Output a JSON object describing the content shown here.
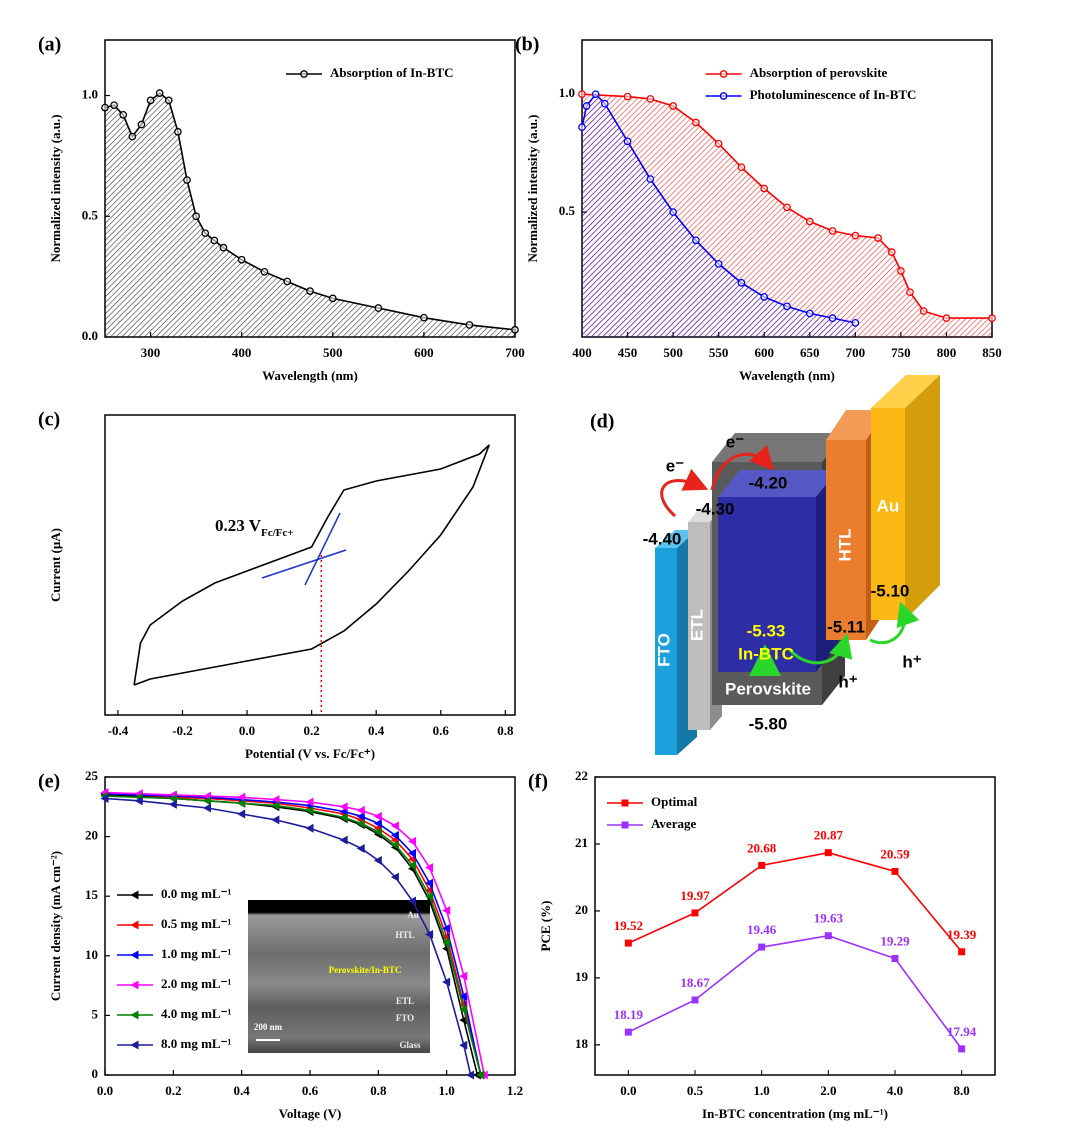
{
  "chart_data": [
    {
      "type": "line",
      "label": "(a)",
      "xlabel": "Wavelength (nm)",
      "ylabel": "Normalized intensity (a.u.)",
      "xlim": [
        250,
        700
      ],
      "ylim": [
        0,
        1.23
      ],
      "xticks": [
        300,
        400,
        500,
        600,
        700
      ],
      "yticks": [
        {
          "value": 0,
          "label": "0.0"
        },
        0.5,
        {
          "value": 1,
          "label": "1.0"
        }
      ],
      "legend": "top-right",
      "fill": "hatch",
      "marker": "open-circle",
      "series": [
        {
          "name": "Absorption of In-BTC",
          "color": "#000000",
          "x": [
            250,
            260,
            270,
            280,
            290,
            300,
            310,
            320,
            330,
            340,
            350,
            360,
            370,
            380,
            400,
            425,
            450,
            475,
            500,
            550,
            600,
            650,
            700
          ],
          "values": [
            0.95,
            0.96,
            0.92,
            0.83,
            0.88,
            0.98,
            1.01,
            0.98,
            0.85,
            0.65,
            0.5,
            0.43,
            0.4,
            0.37,
            0.32,
            0.27,
            0.23,
            0.19,
            0.16,
            0.12,
            0.08,
            0.05,
            0.03
          ]
        }
      ]
    },
    {
      "type": "line",
      "label": "(b)",
      "xlabel": "Wavelength (nm)",
      "ylabel": "Normalized intensity (a.u.)",
      "xlim": [
        400,
        850
      ],
      "ylim": [
        -0.03,
        1.23
      ],
      "xticks": [
        400,
        450,
        500,
        550,
        600,
        650,
        700,
        750,
        800,
        850
      ],
      "yticks": [
        0.5,
        {
          "value": 1,
          "label": "1.0"
        }
      ],
      "legend": "top-right",
      "fill": "hatch",
      "marker": "open-circle",
      "series": [
        {
          "name": "Absorption of perovskite",
          "color": "#ff0000",
          "x": [
            400,
            450,
            475,
            500,
            525,
            550,
            575,
            600,
            625,
            650,
            675,
            700,
            725,
            740,
            750,
            760,
            775,
            800,
            850
          ],
          "values": [
            1.0,
            0.99,
            0.98,
            0.95,
            0.88,
            0.79,
            0.69,
            0.6,
            0.52,
            0.46,
            0.42,
            0.4,
            0.39,
            0.33,
            0.25,
            0.16,
            0.08,
            0.05,
            0.05
          ]
        },
        {
          "name": "Photoluminescence of In-BTC",
          "color": "#0000ff",
          "x": [
            400,
            405,
            415,
            425,
            450,
            475,
            500,
            525,
            550,
            575,
            600,
            625,
            650,
            675,
            700
          ],
          "values": [
            0.86,
            0.95,
            1.0,
            0.96,
            0.8,
            0.64,
            0.5,
            0.38,
            0.28,
            0.2,
            0.14,
            0.1,
            0.07,
            0.05,
            0.03
          ]
        }
      ]
    },
    {
      "type": "line",
      "label": "(c)",
      "xlabel": "Potential (V vs. Fc/Fc⁺)",
      "ylabel": "Current (μA)",
      "xlim": [
        -0.44,
        0.83
      ],
      "ylim": [
        0,
        1
      ],
      "xticks": [
        -0.4,
        -0.2,
        {
          "value": 0,
          "label": "0.0"
        },
        0.2,
        0.4,
        0.6,
        0.8
      ],
      "marker": "none",
      "vline": 0.23,
      "vline_color": "#ff0000",
      "annotation": {
        "text": "0.23 V",
        "subscript": "Fc/Fc+"
      },
      "series": [
        {
          "color": "#000000",
          "x": [
            -0.35,
            -0.3,
            -0.2,
            -0.1,
            0,
            0.1,
            0.2,
            0.3,
            0.4,
            0.5,
            0.6,
            0.7,
            0.75,
            0.72,
            0.6,
            0.5,
            0.4,
            0.3,
            0.25,
            0.2,
            0.1,
            0,
            -0.1,
            -0.2,
            -0.3,
            -0.33,
            -0.35
          ],
          "values": [
            0.1,
            0.12,
            0.14,
            0.16,
            0.18,
            0.2,
            0.22,
            0.28,
            0.37,
            0.48,
            0.6,
            0.76,
            0.9,
            0.87,
            0.82,
            0.8,
            0.78,
            0.75,
            0.66,
            0.56,
            0.52,
            0.48,
            0.44,
            0.38,
            0.3,
            0.24,
            0.1
          ]
        }
      ]
    },
    {
      "type": "line",
      "label": "(e)",
      "xlabel": "Voltage (V)",
      "ylabel": "Current density (mA cm⁻²)",
      "xlim": [
        0,
        1.2
      ],
      "ylim": [
        0,
        25
      ],
      "xticks": [
        {
          "value": 0,
          "label": "0.0"
        },
        0.2,
        0.4,
        0.6,
        0.8,
        {
          "value": 1,
          "label": "1.0"
        },
        1.2
      ],
      "yticks": [
        0,
        5,
        10,
        15,
        20,
        25
      ],
      "legend": "bottom-left",
      "marker": "triangle",
      "inset": {
        "layers": [
          "Au",
          "HTL",
          "Perovskite/In-BTC",
          "ETL",
          "FTO",
          "Glass"
        ],
        "scale": "200 nm"
      },
      "series": [
        {
          "name": "0.0 mg mL⁻¹",
          "color": "#000000",
          "x": [
            0,
            0.1,
            0.2,
            0.3,
            0.4,
            0.5,
            0.6,
            0.7,
            0.75,
            0.8,
            0.85,
            0.9,
            0.95,
            1.0,
            1.05,
            1.09
          ],
          "values": [
            23.5,
            23.4,
            23.2,
            23.0,
            22.8,
            22.5,
            22.1,
            21.5,
            21.0,
            20.2,
            19.1,
            17.3,
            14.6,
            10.6,
            4.6,
            0
          ]
        },
        {
          "name": "0.5 mg mL⁻¹",
          "color": "#ff0000",
          "x": [
            0,
            0.1,
            0.2,
            0.3,
            0.4,
            0.5,
            0.6,
            0.7,
            0.75,
            0.8,
            0.85,
            0.9,
            0.95,
            1.0,
            1.05,
            1.1
          ],
          "values": [
            23.6,
            23.5,
            23.3,
            23.2,
            23.0,
            22.8,
            22.4,
            21.9,
            21.4,
            20.7,
            19.7,
            18.1,
            15.5,
            11.6,
            5.9,
            0
          ]
        },
        {
          "name": "1.0 mg mL⁻¹",
          "color": "#0000ff",
          "x": [
            0,
            0.1,
            0.2,
            0.3,
            0.4,
            0.5,
            0.6,
            0.7,
            0.75,
            0.8,
            0.85,
            0.9,
            0.95,
            1.0,
            1.05,
            1.1
          ],
          "values": [
            23.6,
            23.5,
            23.4,
            23.3,
            23.1,
            22.9,
            22.6,
            22.1,
            21.7,
            21.1,
            20.1,
            18.6,
            16.1,
            12.3,
            6.6,
            0
          ]
        },
        {
          "name": "2.0 mg mL⁻¹",
          "color": "#ff00ff",
          "x": [
            0,
            0.1,
            0.2,
            0.3,
            0.4,
            0.5,
            0.6,
            0.7,
            0.75,
            0.8,
            0.85,
            0.9,
            0.95,
            1.0,
            1.05,
            1.11
          ],
          "values": [
            23.7,
            23.6,
            23.5,
            23.4,
            23.3,
            23.1,
            22.9,
            22.5,
            22.2,
            21.7,
            20.9,
            19.6,
            17.4,
            13.8,
            8.3,
            0
          ]
        },
        {
          "name": "4.0 mg mL⁻¹",
          "color": "#008000",
          "x": [
            0,
            0.1,
            0.2,
            0.3,
            0.4,
            0.5,
            0.6,
            0.7,
            0.75,
            0.8,
            0.85,
            0.9,
            0.95,
            1.0,
            1.05,
            1.1
          ],
          "values": [
            23.4,
            23.3,
            23.2,
            23.0,
            22.8,
            22.6,
            22.2,
            21.6,
            21.1,
            20.4,
            19.3,
            17.6,
            15.0,
            11.1,
            5.5,
            0
          ]
        },
        {
          "name": "8.0 mg mL⁻¹",
          "color": "#1c1c9c",
          "x": [
            0,
            0.1,
            0.2,
            0.3,
            0.4,
            0.5,
            0.6,
            0.7,
            0.75,
            0.8,
            0.85,
            0.9,
            0.95,
            1.0,
            1.05,
            1.07
          ],
          "values": [
            23.2,
            23.0,
            22.7,
            22.4,
            21.9,
            21.4,
            20.7,
            19.7,
            19.0,
            18.0,
            16.6,
            14.6,
            11.8,
            7.8,
            2.5,
            0
          ]
        }
      ]
    },
    {
      "type": "line",
      "label": "(f)",
      "xlabel": "In-BTC concentration (mg mL⁻¹)",
      "ylabel": "PCE (%)",
      "categories": [
        "0.0",
        "0.5",
        "1.0",
        "2.0",
        "4.0",
        "8.0"
      ],
      "ylim": [
        17.55,
        22
      ],
      "yticks": [
        18,
        19,
        20,
        21,
        22
      ],
      "legend": "top-left",
      "marker": "square",
      "data_labels": true,
      "series": [
        {
          "name": "Optimal",
          "color": "#ff0000",
          "values": [
            19.52,
            19.97,
            20.68,
            20.87,
            20.59,
            19.39
          ]
        },
        {
          "name": "Average",
          "color": "#9b30ff",
          "values": [
            18.19,
            18.67,
            19.46,
            19.63,
            19.29,
            17.94
          ]
        }
      ]
    }
  ],
  "diagram": {
    "label": "(d)",
    "layers": [
      "FTO",
      "ETL",
      "Perovskite",
      "HTL",
      "Au"
    ],
    "additive": "In-BTC",
    "levels": [
      "-4.40",
      "-4.30",
      "-4.20",
      "-5.33",
      "-5.80",
      "-5.11",
      "-5.10"
    ],
    "carriers": [
      "e⁻",
      "e⁻",
      "h⁺",
      "h⁺"
    ]
  }
}
